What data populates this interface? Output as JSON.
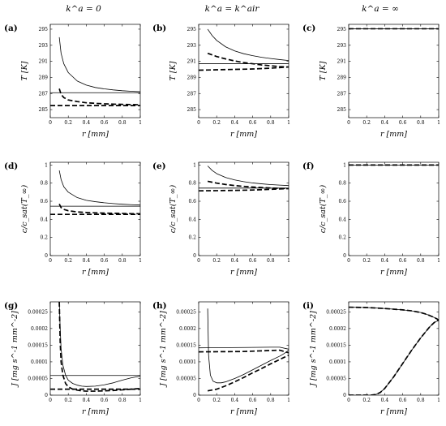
{
  "column_titles": [
    "k^a = 0",
    "k^a = k^air",
    "k^a = ∞"
  ],
  "styles": {
    "thin_solid": "thin solid",
    "thick_dashed": "thick dashed"
  },
  "colors": {
    "line": "#000000",
    "axis": "#000000",
    "background": "#ffffff"
  },
  "chart_data": [
    {
      "panel": "(a)",
      "type": "line",
      "title": "k^a = 0",
      "xlabel": "r [mm]",
      "ylabel": "T [K]",
      "xlim": [
        0,
        1
      ],
      "ylim": [
        284,
        295.6
      ],
      "xticks": [
        "0",
        "0.2",
        "0.4",
        "0.6",
        "0.8",
        "1"
      ],
      "yticks": [
        "285",
        "287",
        "289",
        "291",
        "293",
        "295"
      ],
      "series": [
        {
          "style": "thin_solid",
          "x": [
            0.1,
            0.12,
            0.15,
            0.2,
            0.3,
            0.4,
            0.5,
            0.6,
            0.7,
            0.8,
            0.9,
            1.0
          ],
          "y": [
            294,
            292.0,
            290.7,
            289.6,
            288.55,
            288.05,
            287.75,
            287.58,
            287.45,
            287.35,
            287.28,
            287.22
          ]
        },
        {
          "style": "thin_solid",
          "x": [
            0.0,
            1.0
          ],
          "y": [
            287.1,
            287.1
          ]
        },
        {
          "style": "thick_dashed",
          "x": [
            0.1,
            0.12,
            0.15,
            0.2,
            0.3,
            0.4,
            0.5,
            0.6,
            0.7,
            0.8,
            0.9,
            1.0
          ],
          "y": [
            287.6,
            286.9,
            286.5,
            286.2,
            286.0,
            285.85,
            285.78,
            285.72,
            285.68,
            285.65,
            285.63,
            285.6
          ]
        },
        {
          "style": "thick_dashed",
          "x": [
            0.0,
            1.0
          ],
          "y": [
            285.5,
            285.5
          ]
        }
      ]
    },
    {
      "panel": "(b)",
      "type": "line",
      "title": "k^a = k^air",
      "xlabel": "r [mm]",
      "ylabel": "T [K]",
      "xlim": [
        0,
        1
      ],
      "ylim": [
        284,
        295.6
      ],
      "xticks": [
        "0",
        "0.2",
        "0.4",
        "0.6",
        "0.8",
        "1"
      ],
      "yticks": [
        "285",
        "287",
        "289",
        "291",
        "293",
        "295"
      ],
      "series": [
        {
          "style": "thin_solid",
          "x": [
            0.1,
            0.15,
            0.2,
            0.3,
            0.4,
            0.5,
            0.6,
            0.7,
            0.8,
            0.9,
            1.0
          ],
          "y": [
            295.0,
            294.2,
            293.6,
            292.8,
            292.3,
            291.95,
            291.7,
            291.5,
            291.35,
            291.22,
            291.1
          ]
        },
        {
          "style": "thin_solid",
          "x": [
            0.0,
            1.0
          ],
          "y": [
            290.7,
            290.7
          ]
        },
        {
          "style": "thick_dashed",
          "x": [
            0.1,
            0.2,
            0.3,
            0.4,
            0.5,
            0.6,
            0.7,
            0.8,
            0.9,
            1.0
          ],
          "y": [
            292.0,
            291.6,
            291.3,
            291.05,
            290.85,
            290.7,
            290.55,
            290.45,
            290.35,
            290.3
          ]
        },
        {
          "style": "thick_dashed",
          "x": [
            0.0,
            0.2,
            0.4,
            0.6,
            0.8,
            1.0
          ],
          "y": [
            289.9,
            289.95,
            290.0,
            290.05,
            290.15,
            290.3
          ]
        }
      ]
    },
    {
      "panel": "(c)",
      "type": "line",
      "title": "k^a = ∞",
      "xlabel": "r [mm]",
      "ylabel": "T [K]",
      "xlim": [
        0,
        1
      ],
      "ylim": [
        284,
        295.6
      ],
      "xticks": [
        "0",
        "0.2",
        "0.4",
        "0.6",
        "0.8",
        "1"
      ],
      "yticks": [
        "285",
        "287",
        "289",
        "291",
        "293",
        "295"
      ],
      "series": [
        {
          "style": "thin_solid",
          "x": [
            0.0,
            1.0
          ],
          "y": [
            295.05,
            295.05
          ]
        },
        {
          "style": "thick_dashed",
          "x": [
            0.0,
            1.0
          ],
          "y": [
            295.05,
            295.05
          ]
        }
      ]
    },
    {
      "panel": "(d)",
      "type": "line",
      "xlabel": "r [mm]",
      "ylabel": "c/c_sat(T_∞)",
      "xlim": [
        0,
        1
      ],
      "ylim": [
        0,
        1.03
      ],
      "xticks": [
        "0",
        "0.2",
        "0.4",
        "0.6",
        "0.8",
        "1"
      ],
      "yticks": [
        "0",
        "0.2",
        "0.4",
        "0.6",
        "0.8",
        "1"
      ],
      "series": [
        {
          "style": "thin_solid",
          "x": [
            0.1,
            0.12,
            0.15,
            0.2,
            0.3,
            0.4,
            0.5,
            0.6,
            0.7,
            0.8,
            0.9,
            1.0
          ],
          "y": [
            0.94,
            0.84,
            0.76,
            0.7,
            0.64,
            0.61,
            0.595,
            0.583,
            0.574,
            0.567,
            0.562,
            0.558
          ]
        },
        {
          "style": "thin_solid",
          "x": [
            0.0,
            1.0
          ],
          "y": [
            0.545,
            0.545
          ]
        },
        {
          "style": "thick_dashed",
          "x": [
            0.1,
            0.12,
            0.15,
            0.2,
            0.3,
            0.4,
            0.5,
            0.6,
            0.7,
            0.8,
            0.9,
            1.0
          ],
          "y": [
            0.57,
            0.53,
            0.51,
            0.495,
            0.482,
            0.476,
            0.472,
            0.469,
            0.467,
            0.465,
            0.463,
            0.462
          ]
        },
        {
          "style": "thick_dashed",
          "x": [
            0.0,
            1.0
          ],
          "y": [
            0.455,
            0.455
          ]
        }
      ]
    },
    {
      "panel": "(e)",
      "type": "line",
      "xlabel": "r [mm]",
      "ylabel": "c/c_sat(T_∞)",
      "xlim": [
        0,
        1
      ],
      "ylim": [
        0,
        1.03
      ],
      "xticks": [
        "0",
        "0.2",
        "0.4",
        "0.6",
        "0.8",
        "1"
      ],
      "yticks": [
        "0",
        "0.2",
        "0.4",
        "0.6",
        "0.8",
        "1"
      ],
      "series": [
        {
          "style": "thin_solid",
          "x": [
            0.1,
            0.15,
            0.2,
            0.3,
            0.4,
            0.5,
            0.6,
            0.7,
            0.8,
            0.9,
            1.0
          ],
          "y": [
            0.99,
            0.94,
            0.905,
            0.862,
            0.835,
            0.816,
            0.802,
            0.792,
            0.784,
            0.778,
            0.773
          ]
        },
        {
          "style": "thin_solid",
          "x": [
            0.0,
            1.0
          ],
          "y": [
            0.745,
            0.745
          ]
        },
        {
          "style": "thick_dashed",
          "x": [
            0.1,
            0.2,
            0.3,
            0.4,
            0.5,
            0.6,
            0.7,
            0.8,
            0.9,
            1.0
          ],
          "y": [
            0.82,
            0.8,
            0.785,
            0.773,
            0.764,
            0.757,
            0.751,
            0.746,
            0.742,
            0.74
          ]
        },
        {
          "style": "thick_dashed",
          "x": [
            0.0,
            0.2,
            0.4,
            0.6,
            0.8,
            1.0
          ],
          "y": [
            0.715,
            0.717,
            0.72,
            0.724,
            0.731,
            0.74
          ]
        }
      ]
    },
    {
      "panel": "(f)",
      "type": "line",
      "xlabel": "r [mm]",
      "ylabel": "c/c_sat(T_∞)",
      "xlim": [
        0,
        1
      ],
      "ylim": [
        0,
        1.03
      ],
      "xticks": [
        "0",
        "0.2",
        "0.4",
        "0.6",
        "0.8",
        "1"
      ],
      "yticks": [
        "0",
        "0.2",
        "0.4",
        "0.6",
        "0.8",
        "1"
      ],
      "series": [
        {
          "style": "thin_solid",
          "x": [
            0.0,
            1.0
          ],
          "y": [
            1.0,
            1.0
          ]
        },
        {
          "style": "thick_dashed",
          "x": [
            0.0,
            1.0
          ],
          "y": [
            1.0,
            1.0
          ]
        }
      ]
    },
    {
      "panel": "(g)",
      "type": "line",
      "xlabel": "r [mm]",
      "ylabel": "J [mg s^-1 mm^-2]",
      "xlim": [
        0,
        1
      ],
      "ylim": [
        0,
        0.00028
      ],
      "xticks": [
        "0",
        "0.2",
        "0.4",
        "0.6",
        "0.8",
        "1"
      ],
      "yticks": [
        "0",
        "0.00005",
        "0.0001",
        "0.00015",
        "0.0002",
        "0.00025"
      ],
      "series": [
        {
          "style": "thin_solid",
          "x": [
            0.1,
            0.11,
            0.12,
            0.14,
            0.17,
            0.2,
            0.25,
            0.3,
            0.35,
            0.4,
            0.5,
            0.6,
            0.7,
            0.8,
            0.9,
            1.0
          ],
          "y": [
            0.00028,
            0.0002,
            0.00014,
            9e-05,
            6e-05,
            4.5e-05,
            3.5e-05,
            3e-05,
            2.7e-05,
            2.6e-05,
            2.7e-05,
            3.1e-05,
            3.7e-05,
            4.5e-05,
            5.2e-05,
            5.7e-05
          ]
        },
        {
          "style": "thin_solid",
          "x": [
            0.0,
            1.0
          ],
          "y": [
            5.9e-05,
            5.9e-05
          ]
        },
        {
          "style": "thick_dashed",
          "x": [
            0.1,
            0.11,
            0.12,
            0.14,
            0.17,
            0.2,
            0.25,
            0.3,
            0.35,
            0.4,
            0.5,
            0.6,
            0.7,
            0.8,
            0.9,
            1.0
          ],
          "y": [
            0.00028,
            0.00016,
            0.0001,
            6e-05,
            3.5e-05,
            2.5e-05,
            1.8e-05,
            1.5e-05,
            1.3e-05,
            1.2e-05,
            1.2e-05,
            1.3e-05,
            1.4e-05,
            1.6e-05,
            1.8e-05,
            2e-05
          ]
        },
        {
          "style": "thick_dashed",
          "x": [
            0.0,
            1.0
          ],
          "y": [
            1.8e-05,
            1.8e-05
          ]
        }
      ]
    },
    {
      "panel": "(h)",
      "type": "line",
      "xlabel": "r [mm]",
      "ylabel": "J [mg s^-1 mm^-2]",
      "xlim": [
        0,
        1
      ],
      "ylim": [
        0,
        0.00028
      ],
      "xticks": [
        "0",
        "0.2",
        "0.4",
        "0.6",
        "0.8",
        "1"
      ],
      "yticks": [
        "0",
        "0.00005",
        "0.0001",
        "0.00015",
        "0.0002",
        "0.00025"
      ],
      "series": [
        {
          "style": "thin_solid",
          "x": [
            0.1,
            0.11,
            0.13,
            0.16,
            0.2,
            0.25,
            0.3,
            0.35,
            0.4,
            0.5,
            0.6,
            0.7,
            0.8,
            0.9,
            0.95,
            1.0
          ],
          "y": [
            0.00026,
            0.00012,
            6e-05,
            4.2e-05,
            3.7e-05,
            3.7e-05,
            4e-05,
            4.5e-05,
            5e-05,
            6.2e-05,
            7.6e-05,
            9e-05,
            0.000104,
            0.000117,
            0.000125,
            0.000135
          ]
        },
        {
          "style": "thin_solid",
          "x": [
            0.0,
            0.5,
            0.8,
            0.9,
            1.0
          ],
          "y": [
            0.000142,
            0.000143,
            0.000144,
            0.000144,
            0.000138
          ]
        },
        {
          "style": "thick_dashed",
          "x": [
            0.1,
            0.2,
            0.3,
            0.4,
            0.5,
            0.6,
            0.7,
            0.8,
            0.9,
            1.0
          ],
          "y": [
            1.3e-05,
            1.8e-05,
            2.8e-05,
            4e-05,
            5.3e-05,
            6.7e-05,
            8e-05,
            9.4e-05,
            0.000107,
            0.00012
          ]
        },
        {
          "style": "thick_dashed",
          "x": [
            0.0,
            0.5,
            0.8,
            0.9,
            1.0
          ],
          "y": [
            0.00013,
            0.000131,
            0.000134,
            0.000135,
            0.000127
          ]
        }
      ]
    },
    {
      "panel": "(i)",
      "type": "line",
      "xlabel": "r [mm]",
      "ylabel": "J [mg s^-1 mm^-2]",
      "xlim": [
        0,
        1
      ],
      "ylim": [
        0,
        0.00028
      ],
      "xticks": [
        "0",
        "0.2",
        "0.4",
        "0.6",
        "0.8",
        "1"
      ],
      "yticks": [
        "0",
        "0.00005",
        "0.0001",
        "0.00015",
        "0.0002",
        "0.00025"
      ],
      "series": [
        {
          "style": "thin_solid",
          "x": [
            0.0,
            0.2,
            0.4,
            0.6,
            0.7,
            0.8,
            0.85,
            0.9,
            0.95,
            0.98,
            1.0
          ],
          "y": [
            0.000264,
            0.000263,
            0.00026,
            0.000256,
            0.000253,
            0.000248,
            0.000244,
            0.000239,
            0.000233,
            0.000229,
            0.000225
          ]
        },
        {
          "style": "thick_dashed",
          "x": [
            0.0,
            0.2,
            0.4,
            0.6,
            0.7,
            0.8,
            0.85,
            0.9,
            0.95,
            0.98,
            1.0
          ],
          "y": [
            0.000264,
            0.000263,
            0.00026,
            0.000256,
            0.000253,
            0.000248,
            0.000244,
            0.000239,
            0.000233,
            0.000229,
            0.000225
          ]
        },
        {
          "style": "thin_solid",
          "x": [
            0.0,
            0.2,
            0.25,
            0.3,
            0.35,
            0.4,
            0.5,
            0.6,
            0.7,
            0.8,
            0.9,
            0.95,
            1.0
          ],
          "y": [
            0.0,
            0.0,
            0.0,
            2e-06,
            8e-06,
            2e-05,
            5.5e-05,
            9.5e-05,
            0.000135,
            0.000172,
            0.000205,
            0.000218,
            0.000225
          ]
        },
        {
          "style": "thick_dashed",
          "x": [
            0.0,
            0.2,
            0.25,
            0.3,
            0.35,
            0.4,
            0.5,
            0.6,
            0.7,
            0.8,
            0.9,
            0.95,
            1.0
          ],
          "y": [
            0.0,
            0.0,
            0.0,
            2e-06,
            8e-06,
            2e-05,
            5.5e-05,
            9.5e-05,
            0.000135,
            0.000172,
            0.000205,
            0.000218,
            0.000225
          ]
        }
      ]
    }
  ]
}
